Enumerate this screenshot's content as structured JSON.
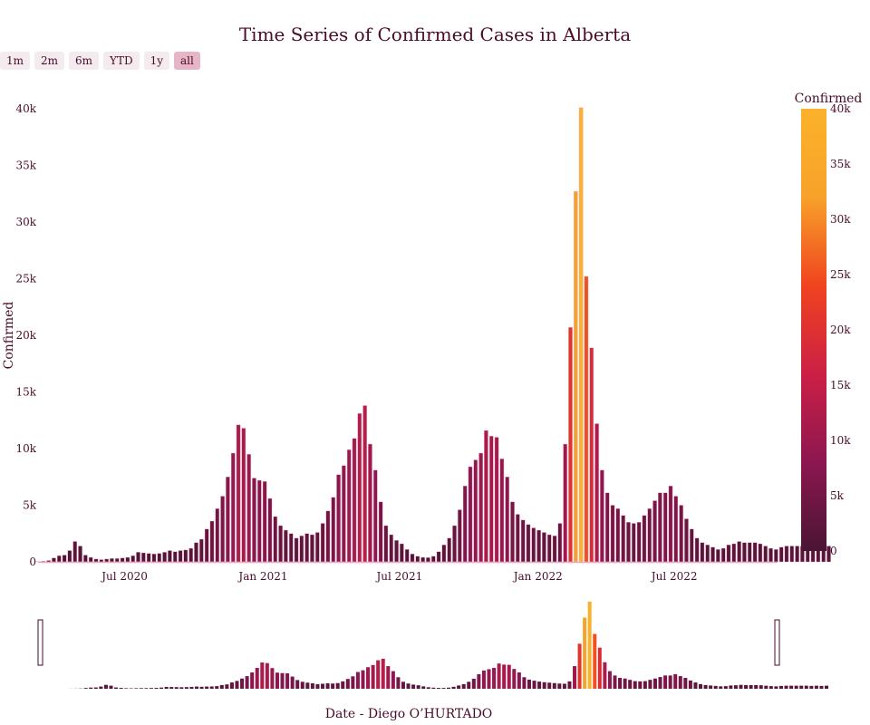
{
  "title": "Time Series of Confirmed Cases in Alberta",
  "range_selector": [
    {
      "label": "1m",
      "active": false
    },
    {
      "label": "2m",
      "active": false
    },
    {
      "label": "6m",
      "active": false
    },
    {
      "label": "YTD",
      "active": false
    },
    {
      "label": "1y",
      "active": false
    },
    {
      "label": "all",
      "active": true
    }
  ],
  "colorbar": {
    "title": "Confirmed",
    "ticks": [
      "0",
      "5k",
      "10k",
      "15k",
      "20k",
      "25k",
      "30k",
      "35k",
      "40k"
    ],
    "colors": [
      "#4a1534",
      "#8c1750",
      "#cc1f45",
      "#f0431f",
      "#f7a22a",
      "#fbb22a"
    ]
  },
  "chart_data": {
    "type": "bar",
    "title": "Time Series of Confirmed Cases in Alberta",
    "xlabel": "Date - Diego O’HURTADO",
    "ylabel": "Confirmed",
    "ylim": [
      0,
      40000
    ],
    "xlim": [
      "2020-03-08",
      "2022-11-15"
    ],
    "y_ticks": [
      {
        "value": 0,
        "label": "0"
      },
      {
        "value": 5000,
        "label": "5k"
      },
      {
        "value": 10000,
        "label": "10k"
      },
      {
        "value": 15000,
        "label": "15k"
      },
      {
        "value": 20000,
        "label": "20k"
      },
      {
        "value": 25000,
        "label": "25k"
      },
      {
        "value": 30000,
        "label": "30k"
      },
      {
        "value": 35000,
        "label": "35k"
      },
      {
        "value": 40000,
        "label": "40k"
      }
    ],
    "x_ticks": [
      {
        "date": "2020-07-01",
        "label": "Jul 2020"
      },
      {
        "date": "2021-01-01",
        "label": "Jan 2021"
      },
      {
        "date": "2021-07-01",
        "label": "Jul 2021"
      },
      {
        "date": "2022-01-01",
        "label": "Jan 2022"
      },
      {
        "date": "2022-07-01",
        "label": "Jul 2022"
      }
    ],
    "grid": false,
    "colorscale": "by value",
    "rangeslider": true,
    "start_date": "2020-03-08",
    "frequency": "weekly",
    "values": [
      30,
      60,
      120,
      350,
      550,
      600,
      1000,
      1800,
      1400,
      600,
      400,
      250,
      200,
      250,
      300,
      300,
      350,
      400,
      550,
      850,
      800,
      750,
      700,
      750,
      850,
      1000,
      900,
      1000,
      1050,
      1200,
      1700,
      2000,
      2900,
      3600,
      4700,
      5800,
      7500,
      9600,
      12100,
      11800,
      9500,
      7400,
      7200,
      7100,
      5600,
      4000,
      3200,
      2800,
      2500,
      2100,
      2300,
      2500,
      2400,
      2600,
      3400,
      4500,
      5700,
      7700,
      8500,
      9900,
      10900,
      13100,
      13800,
      10400,
      8100,
      5300,
      3200,
      2400,
      1900,
      1600,
      1100,
      700,
      500,
      400,
      380,
      500,
      900,
      1500,
      2100,
      3200,
      4600,
      6700,
      8400,
      9000,
      9600,
      11600,
      11100,
      11000,
      9100,
      7500,
      5300,
      4200,
      3700,
      3300,
      3000,
      2800,
      2600,
      2400,
      2300,
      3400,
      10400,
      20700,
      32700,
      40100,
      25200,
      18900,
      12200,
      8100,
      6100,
      5000,
      4700,
      4100,
      3500,
      3400,
      3500,
      4100,
      4700,
      5400,
      6100,
      6100,
      6700,
      5800,
      5000,
      3800,
      2900,
      2100,
      1700,
      1500,
      1300,
      1100,
      1200,
      1500,
      1600,
      1800,
      1700,
      1700,
      1700,
      1600,
      1400,
      1200,
      1100,
      1300,
      1400,
      1400,
      1400,
      1400,
      1400,
      1300,
      1400,
      1300,
      1400
    ]
  }
}
